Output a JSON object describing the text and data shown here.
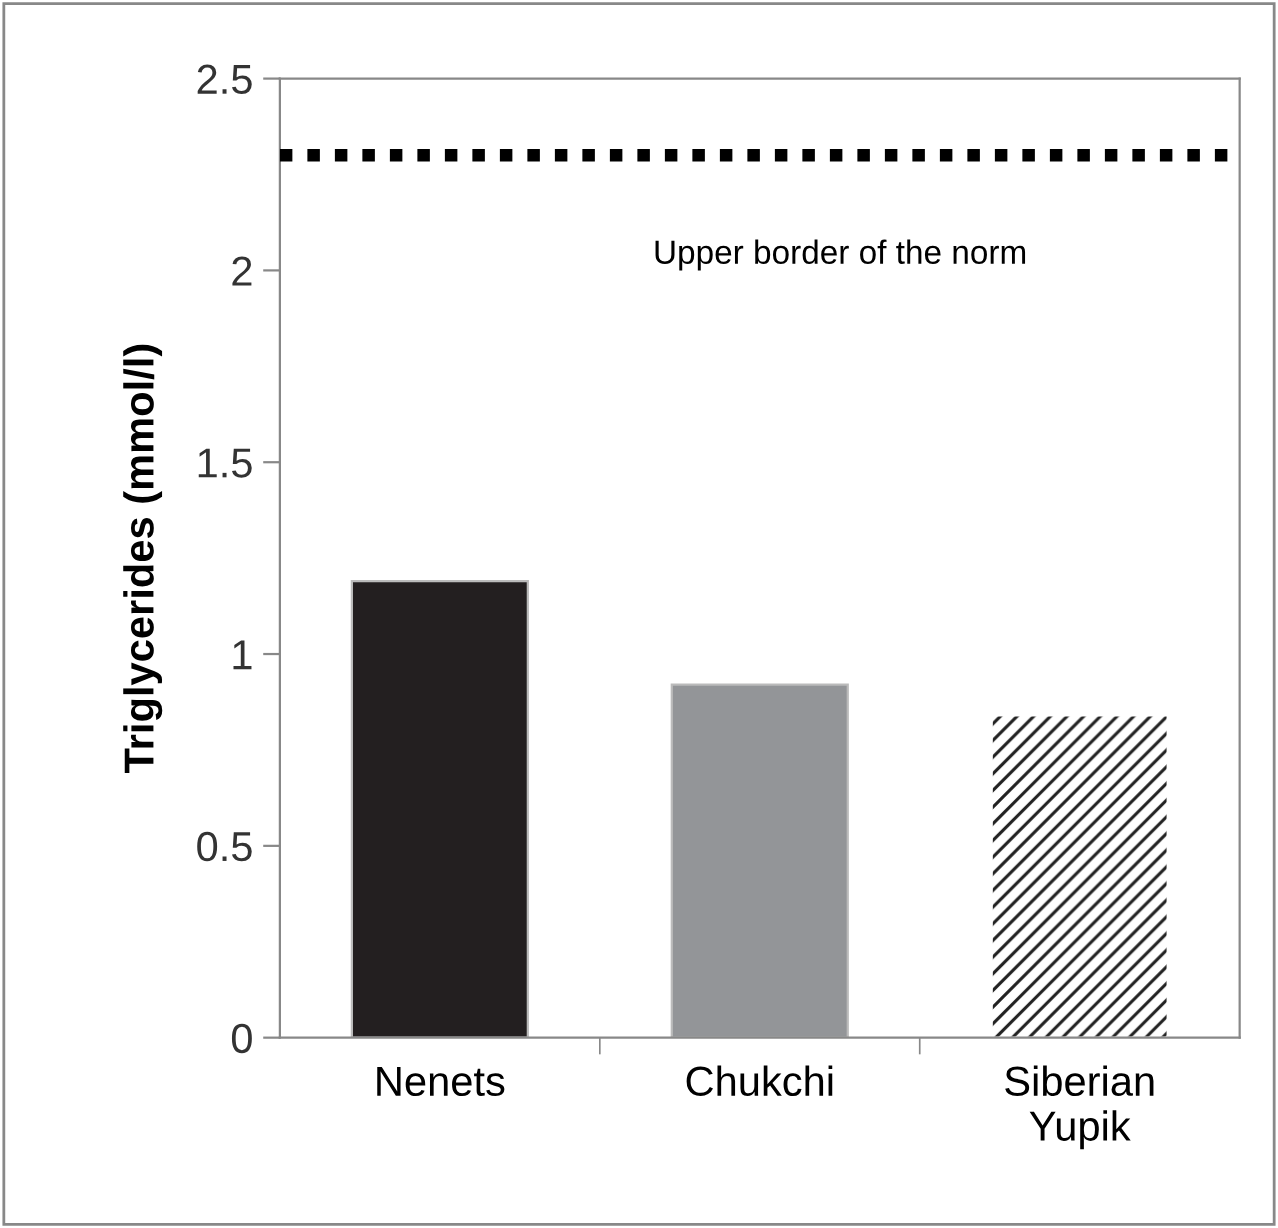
{
  "chart_data": {
    "type": "bar",
    "ylabel": "Triglycerides (mmol/l)",
    "categories": [
      "Nenets",
      "Chukchi",
      "Siberian\nYupik"
    ],
    "values": [
      1.19,
      0.92,
      0.84
    ],
    "colors": [
      "#231f20",
      "#939598",
      "#ffffff"
    ],
    "ylim": [
      0,
      2.5
    ],
    "yticks": [
      0,
      0.5,
      1,
      1.5,
      2,
      2.5
    ],
    "ref_lines": [
      {
        "axis": "y",
        "value": 2.3,
        "label": "Upper border of the norm",
        "color": "#000000",
        "line_style": "dotted"
      }
    ],
    "grid": false,
    "legend": false
  }
}
